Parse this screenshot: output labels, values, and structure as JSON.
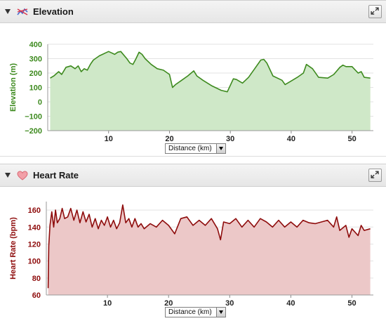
{
  "elevation_panel": {
    "title": "Elevation",
    "icon": "elevation-profile-icon",
    "x_selector": {
      "selected": "Distance (km)"
    }
  },
  "heart_panel": {
    "title": "Heart Rate",
    "icon": "heart-icon",
    "x_selector": {
      "selected": "Distance (km)"
    }
  },
  "chart_data": [
    {
      "type": "area",
      "ylabel": "Elevation (m)",
      "xlim": [
        0,
        53.5
      ],
      "ylim": [
        -200,
        400
      ],
      "x_ticks": [
        10,
        20,
        30,
        40,
        50
      ],
      "y_ticks": [
        400,
        300,
        200,
        100,
        0,
        -100,
        -200
      ],
      "y_tick_labels": [
        "400",
        "300",
        "200",
        "100",
        "0",
        "−100",
        "−200"
      ],
      "grid": true,
      "line_color": "#3d8a1e",
      "fill_color": "#cfe8c8",
      "x": [
        0.4,
        1.0,
        1.8,
        2.3,
        3.0,
        3.8,
        4.5,
        5.0,
        5.5,
        6.0,
        6.5,
        7.0,
        7.5,
        8.5,
        9.0,
        9.5,
        10.0,
        10.5,
        11.0,
        11.5,
        12.0,
        13.0,
        13.5,
        14.0,
        14.5,
        15.0,
        15.5,
        16.0,
        17.0,
        18.0,
        19.0,
        20.0,
        20.5,
        21.0,
        22.0,
        23.0,
        24.0,
        24.5,
        25.5,
        27.0,
        28.5,
        29.5,
        30.5,
        31.0,
        32.0,
        33.0,
        34.0,
        35.0,
        35.5,
        36.0,
        37.0,
        38.5,
        39.0,
        40.0,
        41.0,
        42.0,
        42.5,
        43.5,
        44.5,
        46.0,
        47.0,
        48.0,
        48.5,
        49.0,
        50.0,
        51.0,
        51.5,
        52.0,
        53.0
      ],
      "values": [
        165,
        180,
        210,
        190,
        240,
        250,
        230,
        250,
        210,
        230,
        220,
        260,
        290,
        320,
        330,
        340,
        350,
        340,
        330,
        345,
        350,
        300,
        270,
        260,
        300,
        345,
        330,
        300,
        260,
        230,
        220,
        190,
        100,
        120,
        150,
        180,
        215,
        180,
        150,
        110,
        80,
        70,
        160,
        155,
        130,
        170,
        230,
        290,
        295,
        270,
        180,
        150,
        120,
        145,
        170,
        200,
        260,
        230,
        170,
        165,
        190,
        240,
        255,
        245,
        245,
        200,
        210,
        170,
        165
      ]
    },
    {
      "type": "area",
      "ylabel": "Heart Rate (bpm)",
      "xlim": [
        0,
        53.5
      ],
      "ylim": [
        60,
        170
      ],
      "x_ticks": [
        10,
        20,
        30,
        40,
        50
      ],
      "y_ticks": [
        160,
        140,
        120,
        100,
        80,
        60
      ],
      "grid": true,
      "line_color": "#8e0c0c",
      "fill_color": "#ecc8c8",
      "x": [
        0.3,
        0.4,
        0.6,
        0.9,
        1.2,
        1.5,
        1.8,
        2.2,
        2.6,
        3.0,
        3.5,
        4.0,
        4.5,
        5.0,
        5.5,
        6.0,
        6.5,
        7.0,
        7.5,
        8.0,
        8.5,
        9.0,
        9.5,
        10.0,
        10.5,
        11.0,
        11.5,
        12.0,
        12.5,
        13.0,
        13.5,
        14.0,
        14.5,
        15.0,
        15.5,
        16.0,
        17.0,
        18.0,
        19.0,
        20.0,
        21.0,
        22.0,
        23.0,
        24.0,
        25.0,
        26.0,
        27.0,
        28.0,
        28.5,
        29.0,
        30.0,
        31.0,
        32.0,
        33.0,
        34.0,
        35.0,
        36.0,
        37.0,
        38.0,
        39.0,
        40.0,
        41.0,
        42.0,
        43.0,
        44.0,
        45.0,
        46.0,
        47.0,
        47.5,
        48.0,
        49.0,
        49.5,
        50.0,
        51.0,
        51.5,
        52.0,
        53.0
      ],
      "values": [
        68,
        118,
        142,
        158,
        140,
        160,
        145,
        150,
        162,
        150,
        152,
        162,
        148,
        160,
        145,
        158,
        146,
        155,
        140,
        150,
        138,
        148,
        142,
        152,
        140,
        148,
        138,
        145,
        166,
        145,
        150,
        140,
        150,
        140,
        144,
        138,
        144,
        140,
        148,
        142,
        132,
        150,
        152,
        142,
        148,
        142,
        150,
        138,
        125,
        146,
        144,
        150,
        140,
        148,
        140,
        150,
        146,
        140,
        148,
        140,
        146,
        140,
        148,
        145,
        144,
        146,
        148,
        140,
        152,
        136,
        142,
        128,
        138,
        130,
        142,
        136,
        138
      ]
    }
  ]
}
